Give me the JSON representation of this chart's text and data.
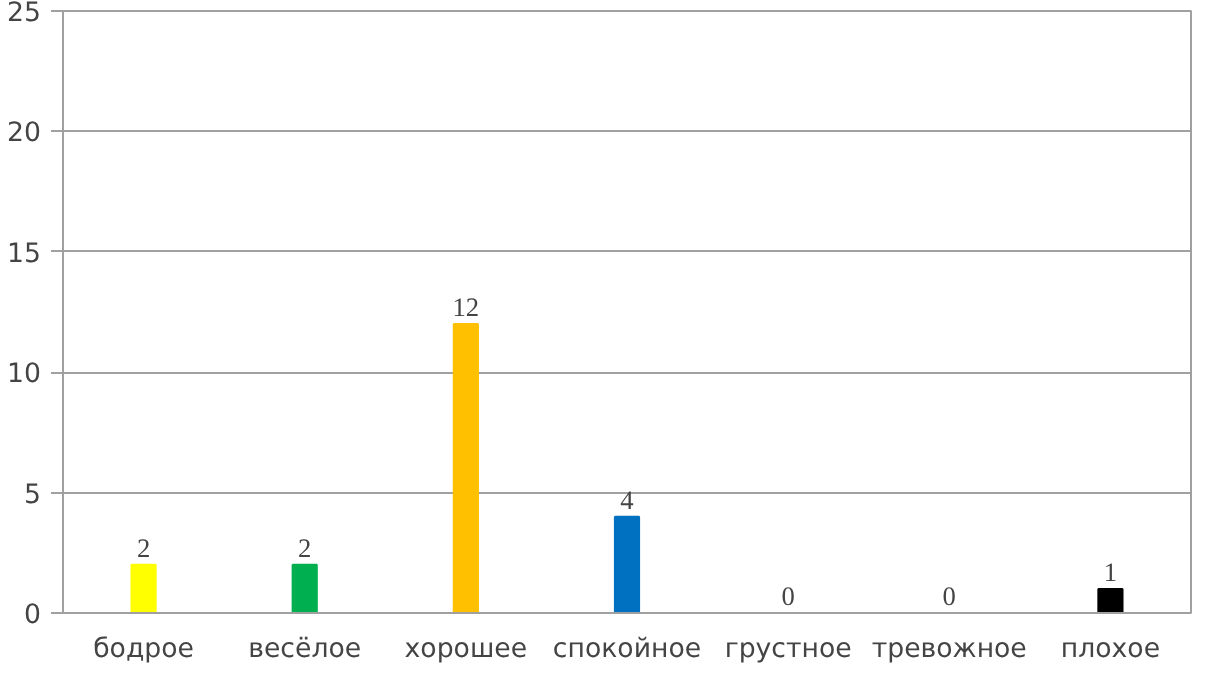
{
  "chart_data": {
    "type": "bar",
    "categories": [
      "бодрое",
      "весёлое",
      "хорошее",
      "спокойное",
      "грустное",
      "тревожное",
      "плохое"
    ],
    "values": [
      2,
      2,
      12,
      4,
      0,
      0,
      1
    ],
    "colors": [
      "#ffff00",
      "#00b050",
      "#ffc000",
      "#0070c0",
      "#7f7f7f",
      "#7f7f7f",
      "#000000"
    ],
    "ylim": [
      0,
      25
    ],
    "yticks": [
      0,
      5,
      10,
      15,
      20,
      25
    ],
    "grid": "y",
    "data_labels": true
  }
}
